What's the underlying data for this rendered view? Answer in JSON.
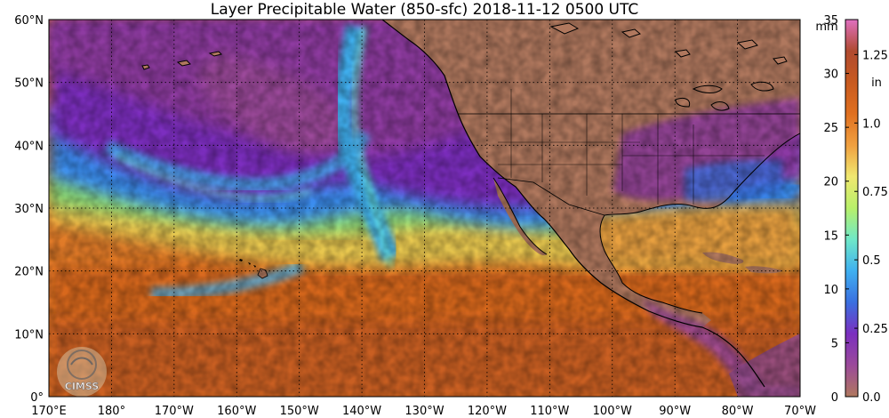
{
  "title": "Layer Precipitable Water (850-sfc)  2018-11-12 0500 UTC",
  "map": {
    "lat_labels": [
      "60°N",
      "50°N",
      "40°N",
      "30°N",
      "20°N",
      "10°N",
      "0°"
    ],
    "lon_labels": [
      "170°E",
      "180°",
      "170°W",
      "160°W",
      "150°W",
      "140°W",
      "130°W",
      "120°W",
      "110°W",
      "100°W",
      "90°W",
      "80°W",
      "70°W"
    ],
    "extent": {
      "lon_min": 170,
      "lon_max": 290,
      "lat_min": 0,
      "lat_max": 60
    },
    "land_color": "#b0785e"
  },
  "logo": {
    "text": "CIMSS"
  },
  "colorbar": {
    "mm_unit": "mm",
    "in_unit": "in",
    "mm_ticks": [
      "35",
      "30",
      "25",
      "20",
      "15",
      "10",
      "5",
      "0"
    ],
    "mm_values": [
      35,
      30,
      25,
      20,
      15,
      10,
      5,
      0
    ],
    "in_ticks": [
      "1.25",
      "1.0",
      "0.75",
      "0.5",
      "0.25",
      "0.0"
    ],
    "in_values_mm": [
      31.75,
      25.4,
      19.05,
      12.7,
      6.35,
      0
    ],
    "range_mm": [
      0,
      35
    ],
    "stops": [
      "#b0785e",
      "#9b4a9a",
      "#7b2fbf",
      "#3a6fe0",
      "#3fb0f0",
      "#6fe8c8",
      "#b8f06a",
      "#f0e870",
      "#f0a040",
      "#e07020",
      "#c85a20",
      "#b04a30",
      "#e070c0"
    ]
  }
}
